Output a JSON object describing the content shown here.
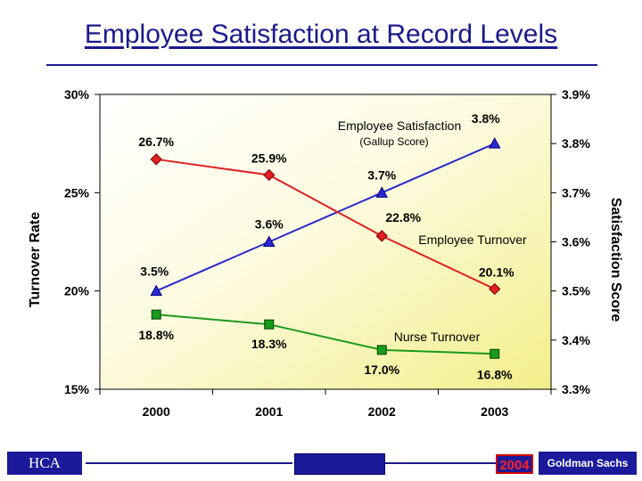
{
  "page": {
    "title": "Employee Satisfaction at Record Levels"
  },
  "footer": {
    "left_label": "HCA",
    "year": "2004",
    "right_label": "Goldman Sachs",
    "accent_color": "#1a1a9a",
    "year_color": "#ff2222"
  },
  "chart_data": {
    "type": "line",
    "x": [
      "2000",
      "2001",
      "2002",
      "2003"
    ],
    "left_axis": {
      "label": "Turnover Rate",
      "min": 15,
      "max": 30,
      "ticks": [
        "15%",
        "20%",
        "25%",
        "30%"
      ]
    },
    "right_axis": {
      "label": "Satisfaction Score",
      "min": 3.3,
      "max": 3.9,
      "ticks": [
        "3.3%",
        "3.4%",
        "3.5%",
        "3.6%",
        "3.7%",
        "3.8%",
        "3.9%"
      ]
    },
    "grid": false,
    "series": [
      {
        "name": "Employee Satisfaction",
        "sub_label": "(Gallup Score)",
        "axis": "right",
        "color": "#2a2ad0",
        "marker": "triangle",
        "values": [
          3.5,
          3.6,
          3.7,
          3.8
        ],
        "labels": [
          "3.5%",
          "3.6%",
          "3.7%",
          "3.8%"
        ]
      },
      {
        "name": "Employee Turnover",
        "axis": "left",
        "color": "#e02020",
        "marker": "diamond",
        "values": [
          26.7,
          25.9,
          22.8,
          20.1
        ],
        "labels": [
          "26.7%",
          "25.9%",
          "22.8%",
          "20.1%"
        ]
      },
      {
        "name": "Nurse Turnover",
        "axis": "left",
        "color": "#1a9a1a",
        "marker": "square",
        "values": [
          18.8,
          18.3,
          17.0,
          16.8
        ],
        "labels": [
          "18.8%",
          "18.3%",
          "17.0%",
          "16.8%"
        ]
      }
    ]
  }
}
